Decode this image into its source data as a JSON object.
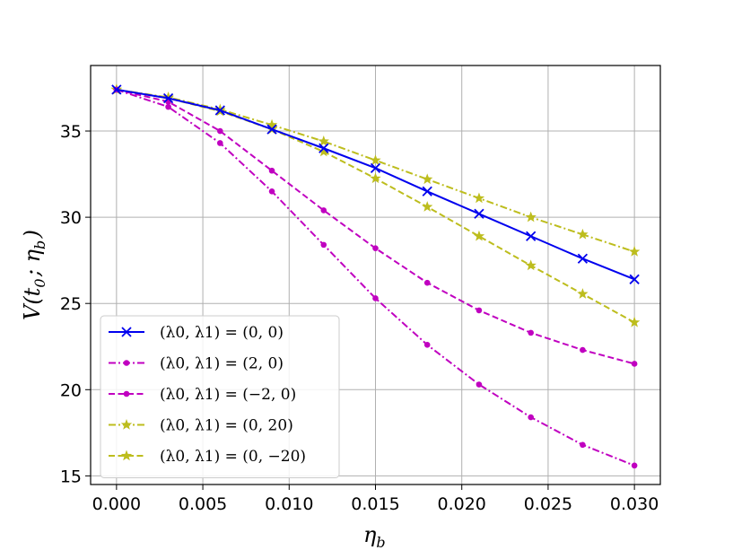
{
  "chart_data": {
    "type": "line",
    "title": "",
    "xlabel": "η_b",
    "ylabel": "V(t_0; η_b)",
    "xlim": [
      -0.0015,
      0.0315
    ],
    "ylim": [
      14.5,
      38.8
    ],
    "grid": true,
    "legend_position": "lower-left",
    "x_ticks": [
      0.0,
      0.005,
      0.01,
      0.015,
      0.02,
      0.025,
      0.03
    ],
    "x_tick_labels": [
      "0.000",
      "0.005",
      "0.010",
      "0.015",
      "0.020",
      "0.025",
      "0.030"
    ],
    "y_ticks": [
      15,
      20,
      25,
      30,
      35
    ],
    "y_tick_labels": [
      "15",
      "20",
      "25",
      "30",
      "35"
    ],
    "x": [
      0.0,
      0.003,
      0.006,
      0.009,
      0.012,
      0.015,
      0.018,
      0.021,
      0.024,
      0.027,
      0.03
    ],
    "series": [
      {
        "name": "(λ0, λ1) = (0, 0)",
        "color": "#0000ee",
        "line_style": "solid",
        "marker": "x",
        "values": [
          37.4,
          36.9,
          36.2,
          35.1,
          34.0,
          32.85,
          31.5,
          30.2,
          28.9,
          27.6,
          26.4
        ]
      },
      {
        "name": "(λ0, λ1) = (2, 0)",
        "color": "#c000c0",
        "line_style": "dashdot",
        "marker": "dot",
        "values": [
          37.4,
          36.4,
          34.3,
          31.5,
          28.4,
          25.3,
          22.6,
          20.3,
          18.4,
          16.8,
          15.6
        ]
      },
      {
        "name": "(λ0, λ1) = (−2, 0)",
        "color": "#c000c0",
        "line_style": "dashed",
        "marker": "dot",
        "values": [
          37.4,
          36.7,
          35.0,
          32.7,
          30.4,
          28.2,
          26.2,
          24.6,
          23.3,
          22.3,
          21.5
        ]
      },
      {
        "name": "(λ0, λ1) = (0, 20)",
        "color": "#bdbd1d",
        "line_style": "dashdot",
        "marker": "star",
        "values": [
          37.4,
          36.95,
          36.25,
          35.35,
          34.4,
          33.3,
          32.2,
          31.1,
          30.0,
          29.0,
          28.0
        ]
      },
      {
        "name": "(λ0, λ1) = (0, −20)",
        "color": "#bdbd1d",
        "line_style": "dashed",
        "marker": "star",
        "values": [
          37.4,
          36.9,
          36.15,
          35.1,
          33.8,
          32.25,
          30.6,
          28.9,
          27.2,
          25.55,
          23.9
        ]
      }
    ]
  }
}
